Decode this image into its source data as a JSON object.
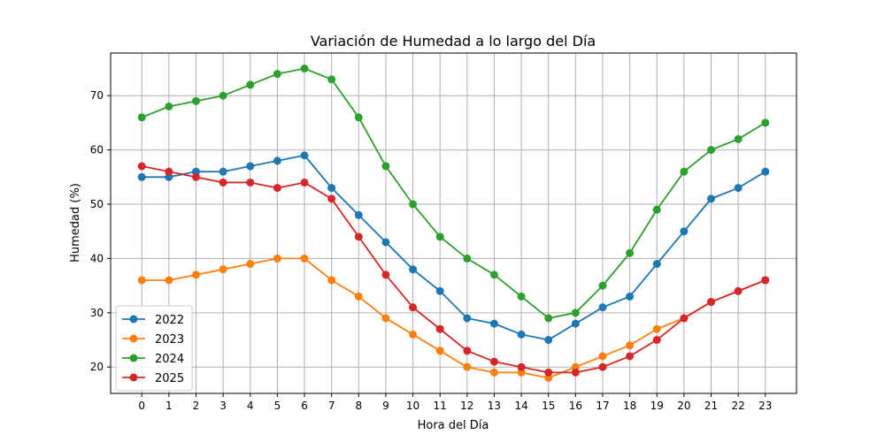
{
  "chart_data": {
    "type": "line",
    "title": "Variación de Humedad a lo largo del Día",
    "xlabel": "Hora del Día",
    "ylabel": "Humedad (%)",
    "x": [
      0,
      1,
      2,
      3,
      4,
      5,
      6,
      7,
      8,
      9,
      10,
      11,
      12,
      13,
      14,
      15,
      16,
      17,
      18,
      19,
      20,
      21,
      22,
      23
    ],
    "xlim": [
      -1.15,
      24.15
    ],
    "ylim": [
      15.15,
      77.85
    ],
    "yticks": [
      20,
      30,
      40,
      50,
      60,
      70
    ],
    "grid": true,
    "legend_position": "lower-left",
    "series": [
      {
        "name": "2022",
        "color": "#1f77b4",
        "values": [
          55,
          55,
          56,
          56,
          57,
          58,
          59,
          53,
          48,
          43,
          38,
          34,
          29,
          28,
          26,
          25,
          28,
          31,
          33,
          39,
          45,
          51,
          53,
          56
        ]
      },
      {
        "name": "2023",
        "color": "#ff7f0e",
        "values": [
          36,
          36,
          37,
          38,
          39,
          40,
          40,
          36,
          33,
          29,
          26,
          23,
          20,
          19,
          19,
          18,
          20,
          22,
          24,
          27,
          29,
          32,
          34,
          36
        ]
      },
      {
        "name": "2024",
        "color": "#2ca02c",
        "values": [
          66,
          68,
          69,
          70,
          72,
          74,
          75,
          73,
          66,
          57,
          50,
          44,
          40,
          37,
          33,
          29,
          30,
          35,
          41,
          49,
          56,
          60,
          62,
          65
        ]
      },
      {
        "name": "2025",
        "color": "#d62728",
        "values": [
          57,
          56,
          55,
          54,
          54,
          53,
          54,
          51,
          44,
          37,
          31,
          27,
          23,
          21,
          20,
          19,
          19,
          20,
          22,
          25,
          29,
          32,
          34,
          36
        ]
      }
    ]
  }
}
